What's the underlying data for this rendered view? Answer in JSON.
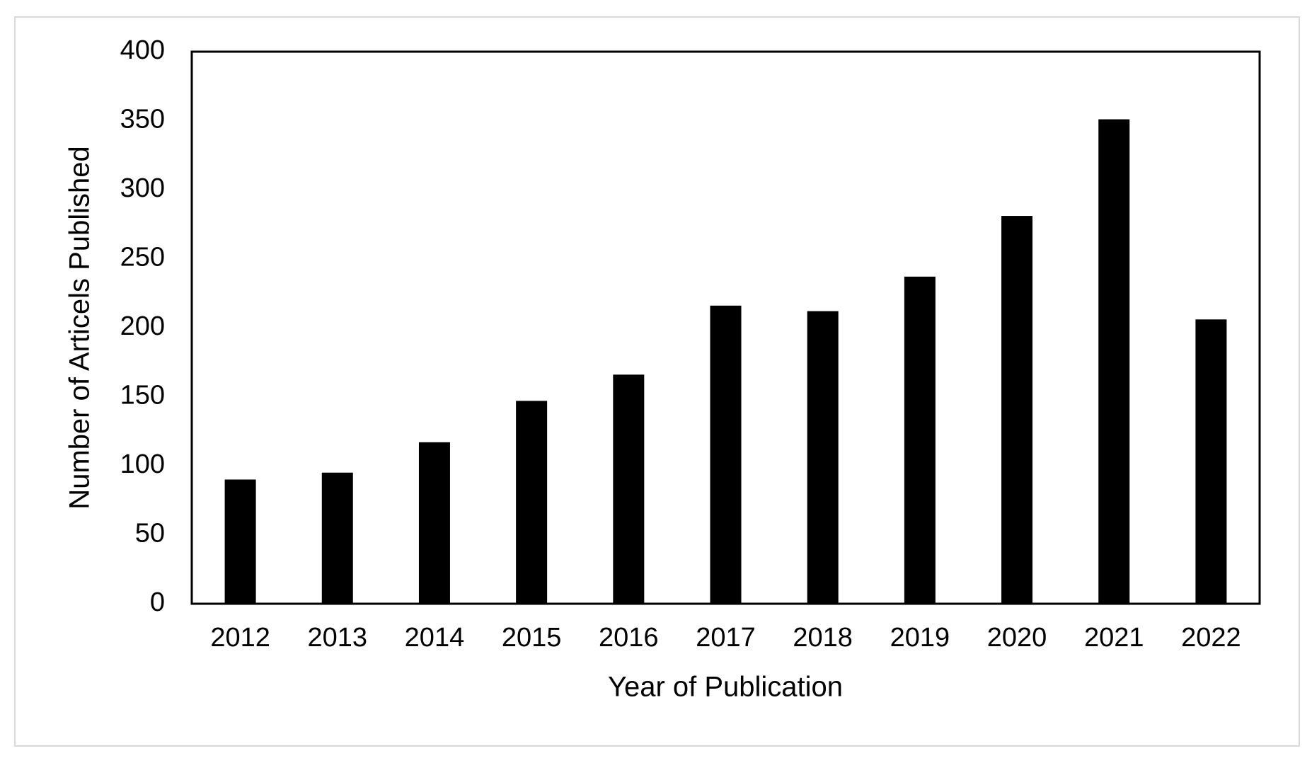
{
  "chart_data": {
    "type": "bar",
    "x_label": "Year of Publication",
    "y_label": "Number  of Articels Published",
    "categories": [
      "2012",
      "2013",
      "2014",
      "2015",
      "2016",
      "2017",
      "2018",
      "2019",
      "2020",
      "2021",
      "2022"
    ],
    "values": [
      90,
      95,
      117,
      147,
      166,
      216,
      212,
      237,
      281,
      351,
      206
    ],
    "color": "#000000",
    "ylim": [
      0,
      400
    ],
    "yticks": [
      0,
      50,
      100,
      150,
      200,
      250,
      300,
      350,
      400
    ],
    "grid": false
  }
}
